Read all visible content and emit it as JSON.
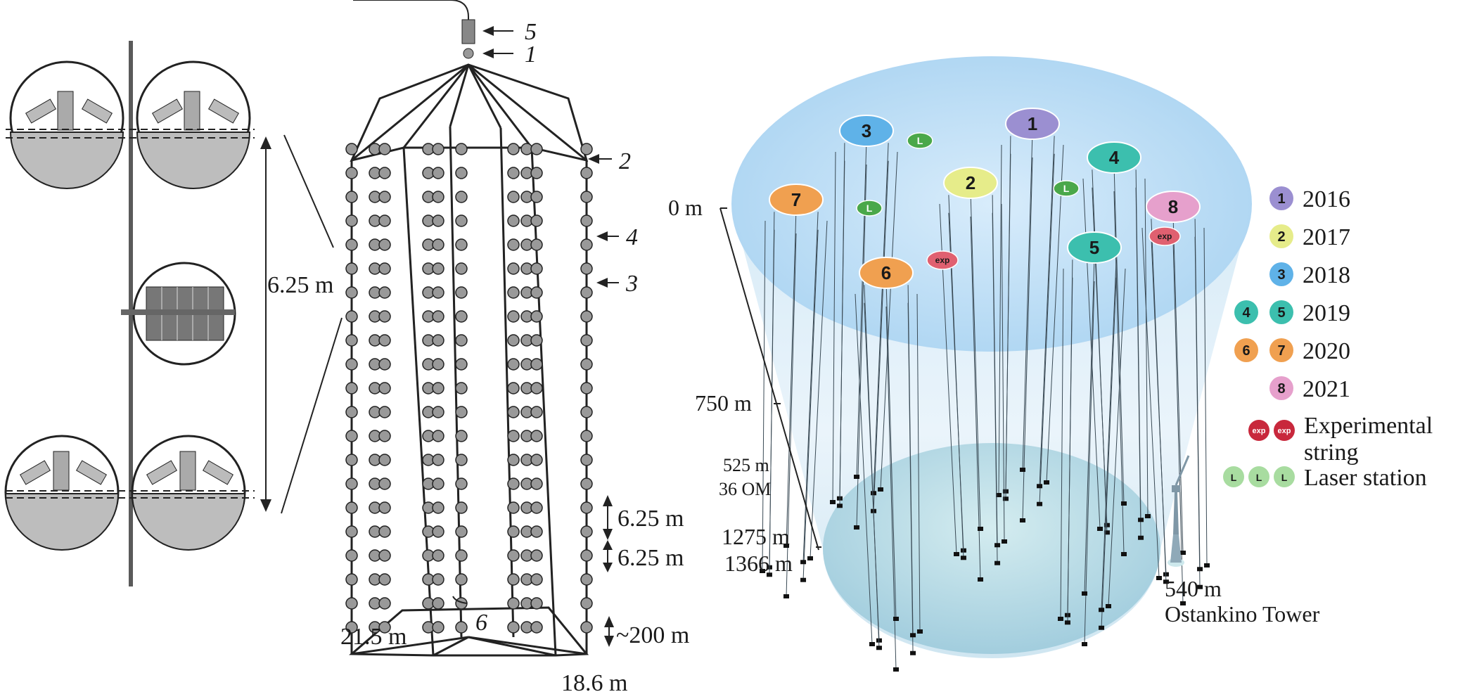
{
  "panel_optical_module": {
    "spacing_label": "6.25 m"
  },
  "panel_cluster_string": {
    "callouts": [
      "5",
      "1",
      "2",
      "4",
      "3",
      "6"
    ],
    "spacing_label_1": "6.25 m",
    "spacing_label_2": "6.25 m",
    "bottom_label": "~200 m",
    "radius_label": "21.5 m",
    "base_label": "18.6 m"
  },
  "panel_detector": {
    "depth_labels": {
      "top": "0 m",
      "mid": "750 m",
      "string_len": "525 m",
      "om_count": "36 OM",
      "d1": "1275 m",
      "d2": "1366 m"
    },
    "clusters": [
      {
        "id": "1",
        "color": "#9b8fd1"
      },
      {
        "id": "2",
        "color": "#e6ec8a"
      },
      {
        "id": "3",
        "color": "#5fb2e8"
      },
      {
        "id": "4",
        "color": "#3cbfae"
      },
      {
        "id": "5",
        "color": "#3cbfae"
      },
      {
        "id": "6",
        "color": "#f0a050"
      },
      {
        "id": "7",
        "color": "#f0a050"
      },
      {
        "id": "8",
        "color": "#e6a0cc"
      }
    ],
    "laser_badge": "L",
    "exp_badge": "exp",
    "tower": {
      "height": "540 m",
      "name": "Ostankino Tower"
    }
  },
  "legend": {
    "entries": [
      {
        "badges": [
          "1"
        ],
        "colors": [
          "#9b8fd1"
        ],
        "year": "2016"
      },
      {
        "badges": [
          "2"
        ],
        "colors": [
          "#e6ec8a"
        ],
        "year": "2017"
      },
      {
        "badges": [
          "3"
        ],
        "colors": [
          "#5fb2e8"
        ],
        "year": "2018"
      },
      {
        "badges": [
          "4",
          "5"
        ],
        "colors": [
          "#3cbfae",
          "#3cbfae"
        ],
        "year": "2019"
      },
      {
        "badges": [
          "6",
          "7"
        ],
        "colors": [
          "#f0a050",
          "#f0a050"
        ],
        "year": "2020"
      },
      {
        "badges": [
          "8"
        ],
        "colors": [
          "#e6a0cc"
        ],
        "year": "2021"
      }
    ],
    "experimental_line1": "Experimental",
    "experimental_line2": "string",
    "laser_label": "Laser station",
    "exp_color": "#c8283c",
    "laser_color": "#a8dca0"
  }
}
